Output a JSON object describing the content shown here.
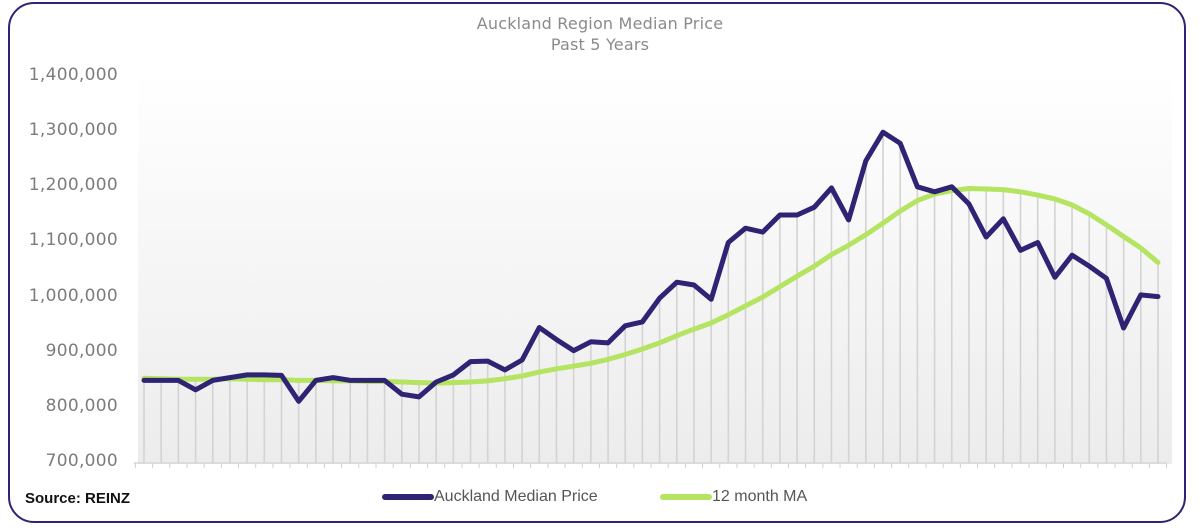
{
  "chart_data": {
    "type": "line",
    "title": "Auckland Region Median Price",
    "subtitle": "Past 5 Years",
    "xlabel": "",
    "ylabel": "",
    "ylim": [
      700000,
      1400000
    ],
    "yticks": [
      700000,
      800000,
      900000,
      1000000,
      1100000,
      1200000,
      1300000,
      1400000
    ],
    "ytick_labels": [
      "700,000",
      "800,000",
      "900,000",
      "1,000,000",
      "1,100,000",
      "1,200,000",
      "1,300,000",
      "1,400,000"
    ],
    "x_tick_labels_visible": false,
    "grid": "vertical drop lines at each data point",
    "legend_position": "bottom",
    "x": [
      0,
      1,
      2,
      3,
      4,
      5,
      6,
      7,
      8,
      9,
      10,
      11,
      12,
      13,
      14,
      15,
      16,
      17,
      18,
      19,
      20,
      21,
      22,
      23,
      24,
      25,
      26,
      27,
      28,
      29,
      30,
      31,
      32,
      33,
      34,
      35,
      36,
      37,
      38,
      39,
      40,
      41,
      42,
      43,
      44,
      45,
      46,
      47,
      48,
      49,
      50,
      51,
      52,
      53,
      54,
      55,
      56,
      57,
      58,
      59
    ],
    "series": [
      {
        "name": "Auckland Median Price",
        "color": "#2e2473",
        "values": [
          848000,
          848000,
          848000,
          831000,
          848000,
          853000,
          858000,
          858000,
          857000,
          810000,
          848000,
          853000,
          848000,
          848000,
          848000,
          823000,
          818000,
          845000,
          858000,
          882000,
          883000,
          867000,
          885000,
          944000,
          922000,
          902000,
          918000,
          916000,
          947000,
          954000,
          997000,
          1026000,
          1021000,
          995000,
          1098000,
          1124000,
          1117000,
          1148000,
          1148000,
          1162000,
          1197000,
          1139000,
          1246000,
          1298000,
          1278000,
          1199000,
          1190000,
          1199000,
          1168000,
          1108000,
          1141000,
          1084000,
          1098000,
          1035000,
          1075000,
          1055000,
          1033000,
          943000,
          1003000,
          1000000
        ]
      },
      {
        "name": "12 month MA",
        "color": "#b5e462",
        "values": [
          852000,
          851000,
          850000,
          850000,
          850000,
          851000,
          850000,
          849000,
          849000,
          848000,
          848000,
          847000,
          847000,
          846000,
          846000,
          845000,
          844000,
          843000,
          844000,
          845000,
          847000,
          851000,
          856000,
          863000,
          869000,
          874000,
          879000,
          886000,
          895000,
          905000,
          916000,
          929000,
          941000,
          952000,
          967000,
          983000,
          999000,
          1018000,
          1037000,
          1055000,
          1076000,
          1093000,
          1112000,
          1133000,
          1155000,
          1174000,
          1186000,
          1192000,
          1196000,
          1195000,
          1194000,
          1190000,
          1184000,
          1177000,
          1166000,
          1150000,
          1130000,
          1109000,
          1088000,
          1062000
        ]
      }
    ]
  },
  "source": "Source: REINZ",
  "legend": [
    {
      "label": "Auckland Median Price",
      "color": "#2e2473"
    },
    {
      "label": "12 month MA",
      "color": "#b5e462"
    }
  ]
}
